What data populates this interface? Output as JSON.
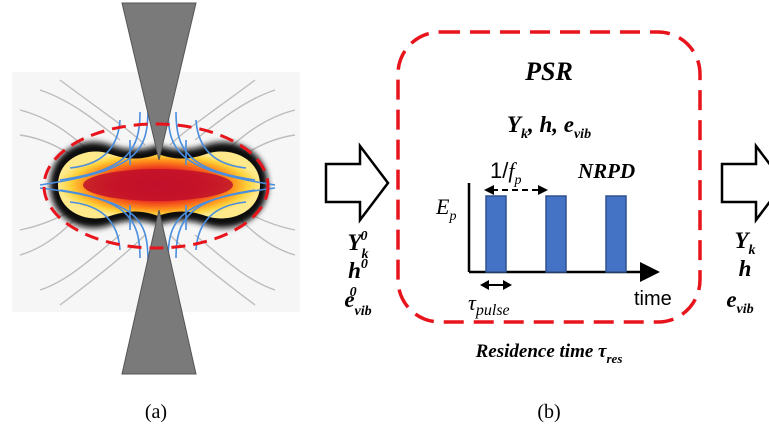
{
  "panel_a": {
    "caption": "(a)"
  },
  "panel_b": {
    "title": "PSR",
    "state_vars": "Y_k, h, e_vib",
    "period_label": "1/f_p",
    "nrpd_label": "NRPD",
    "y_axis_label": "E_p",
    "pulse_width_label": "τ_pulse",
    "x_axis_label": "time",
    "residence_text": "Residence time τ_res",
    "caption": "(b)",
    "pulse_count": 3
  },
  "inlet": {
    "line1": "Y_k^0",
    "line2": "h^0",
    "line3": "e_vib^0"
  },
  "outlet": {
    "line1": "Y_k",
    "line2": "h",
    "line3": "e_vib"
  },
  "colors": {
    "dashed_border": "#e8141c",
    "pulse_fill": "#4472c4",
    "pulse_stroke": "#2f528f",
    "electrode": "#7a7a7a",
    "field_lines": "#4a8ee0"
  }
}
